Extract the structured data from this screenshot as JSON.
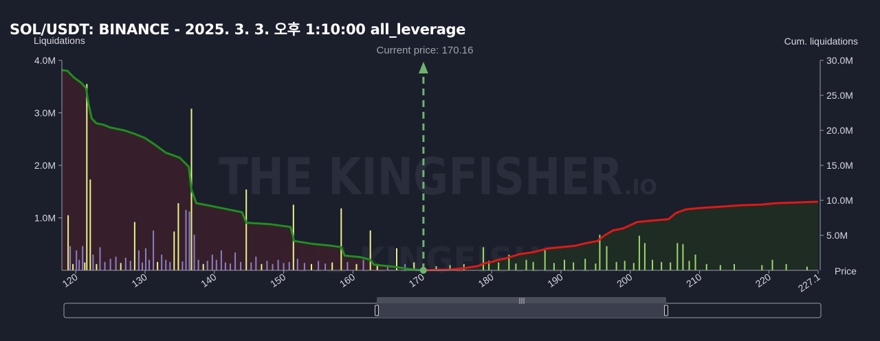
{
  "title": "SOL/USDT: BINANCE - 2025. 3. 3. 오후 1:10:00 all_leverage",
  "left_axis_title": "Liquidations",
  "right_axis_title": "Cum. liquidations",
  "x_axis_title": "Price",
  "current_price_label": "Current price: 170.16",
  "watermark": {
    "main": "THE KINGFISHER",
    "suffix": ".IO"
  },
  "colors": {
    "background": "#1b1e2b",
    "long_cum": "#1f8f1f",
    "short_cum": "#e01818",
    "long_fill": "#3a1f2a",
    "short_fill": "#1f2d24",
    "bar_yellow": "#e9f28a",
    "bar_purple": "#8a7fc4",
    "bar_green": "#9bd86a",
    "current_price_line": "#6fb36f"
  },
  "chart_data": {
    "type": "bar",
    "title": "SOL/USDT: BINANCE - 2025. 3. 3. 오후 1:10:00 all_leverage",
    "xlabel": "Price",
    "ylabel": "Liquidations",
    "y2label": "Cum. liquidations",
    "xlim": [
      118,
      227.1
    ],
    "ylim": [
      0,
      4000000
    ],
    "y2lim": [
      0,
      30000000
    ],
    "x_ticks": [
      "120",
      "130",
      "140",
      "150",
      "160",
      "170",
      "180",
      "190",
      "200",
      "210",
      "220",
      "227.1"
    ],
    "y_ticks": [
      "1.0M",
      "2.0M",
      "3.0M",
      "4.0M"
    ],
    "y2_ticks": [
      "5.0M",
      "10.0M",
      "15.0M",
      "20.0M",
      "25.0M",
      "30.0M"
    ],
    "current_price": 170.16,
    "long_liquidation_bars": [
      {
        "x": 118.9,
        "y": 1050000,
        "c": "yellow"
      },
      {
        "x": 119.2,
        "y": 460000,
        "c": "purple"
      },
      {
        "x": 119.6,
        "y": 120000,
        "c": "yellow"
      },
      {
        "x": 120.1,
        "y": 380000,
        "c": "purple"
      },
      {
        "x": 120.5,
        "y": 200000,
        "c": "purple"
      },
      {
        "x": 121.0,
        "y": 460000,
        "c": "purple"
      },
      {
        "x": 121.3,
        "y": 150000,
        "c": "yellow"
      },
      {
        "x": 121.6,
        "y": 3550000,
        "c": "yellow"
      },
      {
        "x": 122.1,
        "y": 1730000,
        "c": "yellow"
      },
      {
        "x": 122.5,
        "y": 300000,
        "c": "purple"
      },
      {
        "x": 123.0,
        "y": 120000,
        "c": "yellow"
      },
      {
        "x": 123.5,
        "y": 440000,
        "c": "purple"
      },
      {
        "x": 124.2,
        "y": 160000,
        "c": "purple"
      },
      {
        "x": 125.0,
        "y": 220000,
        "c": "purple"
      },
      {
        "x": 125.8,
        "y": 260000,
        "c": "purple"
      },
      {
        "x": 126.5,
        "y": 140000,
        "c": "yellow"
      },
      {
        "x": 127.2,
        "y": 240000,
        "c": "purple"
      },
      {
        "x": 127.9,
        "y": 180000,
        "c": "purple"
      },
      {
        "x": 128.5,
        "y": 920000,
        "c": "yellow"
      },
      {
        "x": 129.1,
        "y": 380000,
        "c": "purple"
      },
      {
        "x": 129.6,
        "y": 150000,
        "c": "purple"
      },
      {
        "x": 130.1,
        "y": 420000,
        "c": "purple"
      },
      {
        "x": 130.6,
        "y": 200000,
        "c": "purple"
      },
      {
        "x": 131.2,
        "y": 760000,
        "c": "purple"
      },
      {
        "x": 131.8,
        "y": 160000,
        "c": "yellow"
      },
      {
        "x": 132.4,
        "y": 300000,
        "c": "purple"
      },
      {
        "x": 133.0,
        "y": 200000,
        "c": "purple"
      },
      {
        "x": 133.6,
        "y": 160000,
        "c": "purple"
      },
      {
        "x": 134.2,
        "y": 740000,
        "c": "yellow"
      },
      {
        "x": 134.8,
        "y": 1280000,
        "c": "yellow"
      },
      {
        "x": 135.4,
        "y": 170000,
        "c": "purple"
      },
      {
        "x": 135.9,
        "y": 1150000,
        "c": "purple"
      },
      {
        "x": 136.4,
        "y": 1120000,
        "c": "purple"
      },
      {
        "x": 136.7,
        "y": 3080000,
        "c": "yellow"
      },
      {
        "x": 137.1,
        "y": 680000,
        "c": "purple"
      },
      {
        "x": 137.7,
        "y": 200000,
        "c": "purple"
      },
      {
        "x": 138.4,
        "y": 120000,
        "c": "yellow"
      },
      {
        "x": 139.0,
        "y": 180000,
        "c": "purple"
      },
      {
        "x": 139.7,
        "y": 300000,
        "c": "purple"
      },
      {
        "x": 140.3,
        "y": 200000,
        "c": "purple"
      },
      {
        "x": 141.0,
        "y": 380000,
        "c": "purple"
      },
      {
        "x": 141.6,
        "y": 150000,
        "c": "purple"
      },
      {
        "x": 142.3,
        "y": 130000,
        "c": "purple"
      },
      {
        "x": 143.0,
        "y": 340000,
        "c": "purple"
      },
      {
        "x": 143.8,
        "y": 160000,
        "c": "purple"
      },
      {
        "x": 144.6,
        "y": 1540000,
        "c": "yellow"
      },
      {
        "x": 145.3,
        "y": 150000,
        "c": "purple"
      },
      {
        "x": 146.0,
        "y": 260000,
        "c": "purple"
      },
      {
        "x": 146.8,
        "y": 120000,
        "c": "yellow"
      },
      {
        "x": 147.6,
        "y": 180000,
        "c": "purple"
      },
      {
        "x": 148.4,
        "y": 120000,
        "c": "purple"
      },
      {
        "x": 149.2,
        "y": 200000,
        "c": "purple"
      },
      {
        "x": 150.0,
        "y": 140000,
        "c": "purple"
      },
      {
        "x": 150.8,
        "y": 160000,
        "c": "purple"
      },
      {
        "x": 151.4,
        "y": 1250000,
        "c": "yellow"
      },
      {
        "x": 152.0,
        "y": 220000,
        "c": "purple"
      },
      {
        "x": 153.0,
        "y": 140000,
        "c": "purple"
      },
      {
        "x": 154.0,
        "y": 120000,
        "c": "yellow"
      },
      {
        "x": 155.0,
        "y": 180000,
        "c": "purple"
      },
      {
        "x": 156.0,
        "y": 130000,
        "c": "purple"
      },
      {
        "x": 157.0,
        "y": 150000,
        "c": "yellow"
      },
      {
        "x": 158.3,
        "y": 1180000,
        "c": "yellow"
      },
      {
        "x": 159.2,
        "y": 160000,
        "c": "purple"
      },
      {
        "x": 160.5,
        "y": 120000,
        "c": "yellow"
      },
      {
        "x": 161.5,
        "y": 200000,
        "c": "purple"
      },
      {
        "x": 162.5,
        "y": 760000,
        "c": "yellow"
      },
      {
        "x": 163.5,
        "y": 120000,
        "c": "yellow"
      },
      {
        "x": 165.0,
        "y": 100000,
        "c": "purple"
      },
      {
        "x": 166.3,
        "y": 420000,
        "c": "yellow"
      },
      {
        "x": 167.5,
        "y": 120000,
        "c": "purple"
      },
      {
        "x": 168.8,
        "y": 150000,
        "c": "yellow"
      }
    ],
    "short_liquidation_bars": [
      {
        "x": 172.0,
        "y": 80000
      },
      {
        "x": 174.0,
        "y": 100000
      },
      {
        "x": 176.0,
        "y": 120000
      },
      {
        "x": 178.8,
        "y": 440000
      },
      {
        "x": 179.6,
        "y": 180000
      },
      {
        "x": 181.0,
        "y": 150000
      },
      {
        "x": 182.5,
        "y": 300000
      },
      {
        "x": 183.5,
        "y": 130000
      },
      {
        "x": 185.0,
        "y": 200000
      },
      {
        "x": 186.0,
        "y": 160000
      },
      {
        "x": 187.7,
        "y": 380000
      },
      {
        "x": 189.0,
        "y": 140000
      },
      {
        "x": 190.5,
        "y": 200000
      },
      {
        "x": 191.8,
        "y": 150000
      },
      {
        "x": 193.5,
        "y": 220000
      },
      {
        "x": 195.0,
        "y": 130000
      },
      {
        "x": 195.6,
        "y": 680000
      },
      {
        "x": 196.6,
        "y": 460000
      },
      {
        "x": 198.0,
        "y": 160000
      },
      {
        "x": 199.2,
        "y": 180000
      },
      {
        "x": 200.5,
        "y": 140000
      },
      {
        "x": 201.3,
        "y": 660000
      },
      {
        "x": 202.1,
        "y": 520000
      },
      {
        "x": 203.2,
        "y": 200000
      },
      {
        "x": 204.5,
        "y": 160000
      },
      {
        "x": 205.8,
        "y": 150000
      },
      {
        "x": 206.8,
        "y": 520000
      },
      {
        "x": 207.6,
        "y": 500000
      },
      {
        "x": 208.5,
        "y": 180000
      },
      {
        "x": 209.4,
        "y": 300000
      },
      {
        "x": 211.0,
        "y": 120000
      },
      {
        "x": 213.0,
        "y": 100000
      },
      {
        "x": 215.0,
        "y": 120000
      },
      {
        "x": 219.0,
        "y": 100000
      },
      {
        "x": 220.5,
        "y": 200000
      },
      {
        "x": 222.5,
        "y": 120000
      },
      {
        "x": 225.5,
        "y": 70000
      }
    ],
    "long_cumulative": [
      [
        118,
        28.6
      ],
      [
        118.8,
        28.5
      ],
      [
        119.8,
        27.5
      ],
      [
        120.8,
        26.8
      ],
      [
        121.5,
        26.0
      ],
      [
        121.8,
        24.0
      ],
      [
        122.3,
        21.7
      ],
      [
        123,
        21.0
      ],
      [
        124,
        20.8
      ],
      [
        125,
        20.4
      ],
      [
        127,
        20.0
      ],
      [
        128.5,
        19.5
      ],
      [
        130,
        18.9
      ],
      [
        131.5,
        17.9
      ],
      [
        133,
        16.8
      ],
      [
        135,
        16.1
      ],
      [
        136.3,
        14.8
      ],
      [
        136.7,
        11.5
      ],
      [
        137.4,
        9.6
      ],
      [
        139,
        9.3
      ],
      [
        141,
        8.9
      ],
      [
        142.5,
        8.6
      ],
      [
        144,
        8.3
      ],
      [
        144.6,
        6.8
      ],
      [
        148,
        6.6
      ],
      [
        151,
        6.2
      ],
      [
        151.5,
        4.2
      ],
      [
        154,
        3.8
      ],
      [
        157,
        3.5
      ],
      [
        158.3,
        3.3
      ],
      [
        158.8,
        2.1
      ],
      [
        161,
        1.9
      ],
      [
        162.5,
        1.5
      ],
      [
        163,
        0.8
      ],
      [
        166,
        0.5
      ],
      [
        168,
        0.2
      ],
      [
        170.16,
        0.0
      ]
    ],
    "short_cumulative": [
      [
        170.16,
        0.0
      ],
      [
        172,
        0.05
      ],
      [
        174,
        0.1
      ],
      [
        176,
        0.3
      ],
      [
        178,
        0.6
      ],
      [
        179,
        1.0
      ],
      [
        180,
        1.2
      ],
      [
        181,
        1.5
      ],
      [
        182,
        1.7
      ],
      [
        184,
        2.3
      ],
      [
        186,
        2.6
      ],
      [
        188,
        3.1
      ],
      [
        190,
        3.3
      ],
      [
        192,
        3.5
      ],
      [
        193.7,
        3.9
      ],
      [
        195.3,
        4.2
      ],
      [
        196.3,
        5.0
      ],
      [
        197.5,
        5.7
      ],
      [
        199,
        6.0
      ],
      [
        201,
        6.9
      ],
      [
        203,
        7.1
      ],
      [
        205.5,
        7.3
      ],
      [
        206.6,
        8.2
      ],
      [
        208,
        8.7
      ],
      [
        210,
        8.9
      ],
      [
        213,
        9.1
      ],
      [
        216,
        9.3
      ],
      [
        219,
        9.4
      ],
      [
        221,
        9.6
      ],
      [
        224,
        9.7
      ],
      [
        227.1,
        9.8
      ]
    ]
  }
}
